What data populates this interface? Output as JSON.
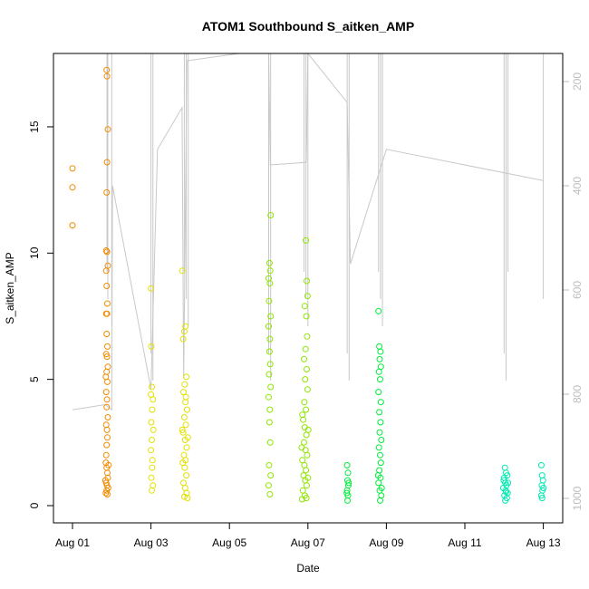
{
  "chart_data": {
    "type": "scatter",
    "title": "ATOM1 Southbound S_aitken_AMP",
    "xlabel": "Date",
    "ylabel": "S_aitken_AMP",
    "xlim": [
      "2021-08-01",
      "2021-08-13.25"
    ],
    "ylim": [
      0,
      17.8
    ],
    "x_ticks": [
      {
        "date": "2021-08-01",
        "label": "Aug 01"
      },
      {
        "date": "2021-08-03",
        "label": "Aug 03"
      },
      {
        "date": "2021-08-05",
        "label": "Aug 05"
      },
      {
        "date": "2021-08-07",
        "label": "Aug 07"
      },
      {
        "date": "2021-08-09",
        "label": "Aug 09"
      },
      {
        "date": "2021-08-11",
        "label": "Aug 11"
      },
      {
        "date": "2021-08-13",
        "label": "Aug 13"
      }
    ],
    "y_ticks": [
      0,
      5,
      10,
      15
    ],
    "y2_axis": {
      "ticks": [
        200,
        400,
        600,
        800,
        1000
      ],
      "reversed": true,
      "lim": [
        140,
        1050
      ],
      "line_color": "#c8c8c8",
      "series": [
        {
          "x": "2021-08-01 00:00",
          "y": 830
        },
        {
          "x": "2021-08-01 20:00",
          "y": 820
        },
        {
          "x": "2021-08-02 00:00",
          "y": 830
        },
        {
          "x": "2021-08-02 00:30",
          "y": 400
        },
        {
          "x": "2021-08-03 00:00",
          "y": 790
        },
        {
          "x": "2021-08-03 04:00",
          "y": 330
        },
        {
          "x": "2021-08-03 19:00",
          "y": 250
        },
        {
          "x": "2021-08-03 20:00",
          "y": 770
        },
        {
          "x": "2021-08-03 22:00",
          "y": 160
        },
        {
          "x": "2021-08-05 06:00",
          "y": 130
        },
        {
          "x": "2021-08-06 00:00",
          "y": 140
        },
        {
          "x": "2021-08-06 01:00",
          "y": 360
        },
        {
          "x": "2021-08-06 23:00",
          "y": 355
        },
        {
          "x": "2021-08-07 00:00",
          "y": 140
        },
        {
          "x": "2021-08-08 00:00",
          "y": 240
        },
        {
          "x": "2021-08-08 02:00",
          "y": 550
        },
        {
          "x": "2021-08-09 00:00",
          "y": 330
        },
        {
          "x": "2021-08-13 00:00",
          "y": 390
        }
      ]
    },
    "series": [
      {
        "name": "",
        "x_start": "2021-08-01",
        "color": "#f28b00",
        "points": [
          {
            "x": 0.0,
            "y": 13.35
          },
          {
            "x": 0.0,
            "y": 12.6
          },
          {
            "x": 0.0,
            "y": 11.1
          },
          {
            "x": 0.87,
            "y": 17.25
          },
          {
            "x": 0.88,
            "y": 17.0
          },
          {
            "x": 0.9,
            "y": 14.9
          },
          {
            "x": 0.88,
            "y": 13.6
          },
          {
            "x": 0.87,
            "y": 12.4
          },
          {
            "x": 0.86,
            "y": 10.1
          },
          {
            "x": 0.88,
            "y": 10.05
          },
          {
            "x": 0.9,
            "y": 9.5
          },
          {
            "x": 0.86,
            "y": 9.3
          },
          {
            "x": 0.87,
            "y": 8.7
          },
          {
            "x": 0.89,
            "y": 8.0
          },
          {
            "x": 0.86,
            "y": 7.6
          },
          {
            "x": 0.88,
            "y": 7.6
          },
          {
            "x": 0.87,
            "y": 6.8
          },
          {
            "x": 0.89,
            "y": 6.3
          },
          {
            "x": 0.86,
            "y": 6.0
          },
          {
            "x": 0.88,
            "y": 5.9
          },
          {
            "x": 0.9,
            "y": 5.5
          },
          {
            "x": 0.87,
            "y": 5.3
          },
          {
            "x": 0.85,
            "y": 5.1
          },
          {
            "x": 0.89,
            "y": 4.9
          },
          {
            "x": 0.86,
            "y": 4.5
          },
          {
            "x": 0.88,
            "y": 4.2
          },
          {
            "x": 0.87,
            "y": 3.9
          },
          {
            "x": 0.9,
            "y": 3.5
          },
          {
            "x": 0.86,
            "y": 3.2
          },
          {
            "x": 0.88,
            "y": 3.0
          },
          {
            "x": 0.89,
            "y": 2.7
          },
          {
            "x": 0.87,
            "y": 2.4
          },
          {
            "x": 0.86,
            "y": 2.0
          },
          {
            "x": 0.85,
            "y": 1.7
          },
          {
            "x": 0.87,
            "y": 1.5
          },
          {
            "x": 0.89,
            "y": 1.3
          },
          {
            "x": 0.9,
            "y": 1.1
          },
          {
            "x": 0.86,
            "y": 0.9
          },
          {
            "x": 0.88,
            "y": 0.8
          },
          {
            "x": 0.87,
            "y": 0.6
          },
          {
            "x": 0.85,
            "y": 0.5
          },
          {
            "x": 0.89,
            "y": 0.45
          },
          {
            "x": 0.91,
            "y": 0.7
          },
          {
            "x": 0.84,
            "y": 1.0
          },
          {
            "x": 0.92,
            "y": 1.6
          }
        ]
      },
      {
        "name": "",
        "x_start": "2021-08-01",
        "color": "#e3e100",
        "points": [
          {
            "x": 2.0,
            "y": 8.6
          },
          {
            "x": 2.01,
            "y": 6.3
          },
          {
            "x": 2.02,
            "y": 4.7
          },
          {
            "x": 2.0,
            "y": 4.4
          },
          {
            "x": 2.05,
            "y": 4.2
          },
          {
            "x": 2.03,
            "y": 3.8
          },
          {
            "x": 2.01,
            "y": 3.3
          },
          {
            "x": 2.06,
            "y": 3.0
          },
          {
            "x": 2.02,
            "y": 2.6
          },
          {
            "x": 2.0,
            "y": 2.2
          },
          {
            "x": 2.04,
            "y": 1.8
          },
          {
            "x": 2.03,
            "y": 1.5
          },
          {
            "x": 2.01,
            "y": 1.1
          },
          {
            "x": 2.05,
            "y": 0.8
          },
          {
            "x": 2.02,
            "y": 0.6
          },
          {
            "x": 2.8,
            "y": 9.3
          },
          {
            "x": 2.82,
            "y": 6.6
          },
          {
            "x": 2.85,
            "y": 6.9
          },
          {
            "x": 2.88,
            "y": 7.1
          },
          {
            "x": 2.9,
            "y": 5.1
          },
          {
            "x": 2.86,
            "y": 4.8
          },
          {
            "x": 2.83,
            "y": 4.5
          },
          {
            "x": 2.88,
            "y": 4.1
          },
          {
            "x": 2.92,
            "y": 3.8
          },
          {
            "x": 2.85,
            "y": 3.5
          },
          {
            "x": 2.89,
            "y": 3.2
          },
          {
            "x": 2.82,
            "y": 2.9
          },
          {
            "x": 2.87,
            "y": 2.6
          },
          {
            "x": 2.91,
            "y": 2.3
          },
          {
            "x": 2.84,
            "y": 2.0
          },
          {
            "x": 2.88,
            "y": 1.8
          },
          {
            "x": 2.86,
            "y": 1.5
          },
          {
            "x": 2.9,
            "y": 1.2
          },
          {
            "x": 2.83,
            "y": 0.9
          },
          {
            "x": 2.87,
            "y": 0.7
          },
          {
            "x": 2.91,
            "y": 0.5
          },
          {
            "x": 2.85,
            "y": 0.35
          },
          {
            "x": 2.93,
            "y": 0.3
          },
          {
            "x": 2.81,
            "y": 1.7
          },
          {
            "x": 2.94,
            "y": 2.7
          },
          {
            "x": 2.8,
            "y": 3.0
          },
          {
            "x": 2.89,
            "y": 4.3
          }
        ]
      },
      {
        "name": "",
        "x_start": "2021-08-01",
        "color": "#8ee600",
        "points": [
          {
            "x": 5.05,
            "y": 11.5
          },
          {
            "x": 5.02,
            "y": 9.6
          },
          {
            "x": 5.04,
            "y": 9.3
          },
          {
            "x": 5.0,
            "y": 9.0
          },
          {
            "x": 5.03,
            "y": 8.8
          },
          {
            "x": 5.01,
            "y": 8.1
          },
          {
            "x": 5.05,
            "y": 7.5
          },
          {
            "x": 5.0,
            "y": 7.1
          },
          {
            "x": 5.03,
            "y": 6.6
          },
          {
            "x": 5.02,
            "y": 6.1
          },
          {
            "x": 5.04,
            "y": 5.6
          },
          {
            "x": 5.01,
            "y": 5.2
          },
          {
            "x": 5.05,
            "y": 4.7
          },
          {
            "x": 5.0,
            "y": 4.3
          },
          {
            "x": 5.03,
            "y": 3.8
          },
          {
            "x": 5.02,
            "y": 3.3
          },
          {
            "x": 5.04,
            "y": 2.5
          },
          {
            "x": 5.01,
            "y": 1.6
          },
          {
            "x": 5.05,
            "y": 1.2
          },
          {
            "x": 5.0,
            "y": 0.8
          },
          {
            "x": 5.03,
            "y": 0.45
          },
          {
            "x": 5.95,
            "y": 10.5
          },
          {
            "x": 5.97,
            "y": 8.9
          },
          {
            "x": 5.99,
            "y": 8.3
          },
          {
            "x": 5.92,
            "y": 7.9
          },
          {
            "x": 5.96,
            "y": 7.5
          },
          {
            "x": 5.98,
            "y": 6.7
          },
          {
            "x": 5.94,
            "y": 6.2
          },
          {
            "x": 5.9,
            "y": 5.8
          },
          {
            "x": 5.97,
            "y": 5.4
          },
          {
            "x": 5.93,
            "y": 5.0
          },
          {
            "x": 5.99,
            "y": 4.6
          },
          {
            "x": 5.91,
            "y": 4.1
          },
          {
            "x": 5.95,
            "y": 3.8
          },
          {
            "x": 5.88,
            "y": 3.4
          },
          {
            "x": 5.92,
            "y": 3.1
          },
          {
            "x": 5.96,
            "y": 2.8
          },
          {
            "x": 5.9,
            "y": 2.5
          },
          {
            "x": 5.94,
            "y": 2.2
          },
          {
            "x": 5.98,
            "y": 2.0
          },
          {
            "x": 5.86,
            "y": 1.8
          },
          {
            "x": 5.91,
            "y": 1.6
          },
          {
            "x": 5.95,
            "y": 1.4
          },
          {
            "x": 5.89,
            "y": 1.2
          },
          {
            "x": 5.93,
            "y": 1.0
          },
          {
            "x": 5.97,
            "y": 0.8
          },
          {
            "x": 5.87,
            "y": 0.6
          },
          {
            "x": 5.92,
            "y": 0.4
          },
          {
            "x": 5.96,
            "y": 0.3
          },
          {
            "x": 5.85,
            "y": 0.25
          },
          {
            "x": 6.0,
            "y": 1.1
          },
          {
            "x": 5.84,
            "y": 2.3
          },
          {
            "x": 6.01,
            "y": 3.0
          },
          {
            "x": 5.86,
            "y": 3.6
          }
        ]
      },
      {
        "name": "",
        "x_start": "2021-08-01",
        "color": "#00ee3c",
        "points": [
          {
            "x": 7.0,
            "y": 1.6
          },
          {
            "x": 7.02,
            "y": 1.3
          },
          {
            "x": 7.01,
            "y": 1.0
          },
          {
            "x": 7.03,
            "y": 0.8
          },
          {
            "x": 7.0,
            "y": 0.6
          },
          {
            "x": 7.02,
            "y": 0.4
          },
          {
            "x": 7.01,
            "y": 0.2
          },
          {
            "x": 7.04,
            "y": 0.9
          },
          {
            "x": 6.99,
            "y": 0.5
          },
          {
            "x": 7.8,
            "y": 7.7
          },
          {
            "x": 7.82,
            "y": 6.3
          },
          {
            "x": 7.85,
            "y": 6.1
          },
          {
            "x": 7.83,
            "y": 5.8
          },
          {
            "x": 7.86,
            "y": 5.5
          },
          {
            "x": 7.81,
            "y": 5.3
          },
          {
            "x": 7.84,
            "y": 5.0
          },
          {
            "x": 7.8,
            "y": 4.5
          },
          {
            "x": 7.86,
            "y": 4.1
          },
          {
            "x": 7.82,
            "y": 3.7
          },
          {
            "x": 7.85,
            "y": 3.3
          },
          {
            "x": 7.83,
            "y": 2.9
          },
          {
            "x": 7.87,
            "y": 2.6
          },
          {
            "x": 7.81,
            "y": 2.3
          },
          {
            "x": 7.84,
            "y": 2.0
          },
          {
            "x": 7.86,
            "y": 1.7
          },
          {
            "x": 7.82,
            "y": 1.4
          },
          {
            "x": 7.85,
            "y": 1.1
          },
          {
            "x": 7.8,
            "y": 0.9
          },
          {
            "x": 7.83,
            "y": 0.6
          },
          {
            "x": 7.87,
            "y": 0.4
          },
          {
            "x": 7.84,
            "y": 0.2
          },
          {
            "x": 7.88,
            "y": 0.7
          },
          {
            "x": 7.79,
            "y": 1.2
          }
        ]
      },
      {
        "name": "",
        "x_start": "2021-08-01",
        "color": "#00eab0",
        "points": [
          {
            "x": 11.02,
            "y": 1.5
          },
          {
            "x": 11.05,
            "y": 1.3
          },
          {
            "x": 11.0,
            "y": 1.1
          },
          {
            "x": 11.08,
            "y": 1.2
          },
          {
            "x": 11.03,
            "y": 0.9
          },
          {
            "x": 11.06,
            "y": 0.8
          },
          {
            "x": 10.98,
            "y": 0.7
          },
          {
            "x": 11.04,
            "y": 0.6
          },
          {
            "x": 11.09,
            "y": 0.5
          },
          {
            "x": 11.01,
            "y": 0.4
          },
          {
            "x": 11.07,
            "y": 0.3
          },
          {
            "x": 11.03,
            "y": 0.2
          },
          {
            "x": 10.99,
            "y": 1.0
          },
          {
            "x": 11.1,
            "y": 0.9
          },
          {
            "x": 11.05,
            "y": 0.55
          },
          {
            "x": 11.95,
            "y": 1.6
          },
          {
            "x": 11.97,
            "y": 1.2
          },
          {
            "x": 11.99,
            "y": 1.0
          },
          {
            "x": 11.96,
            "y": 0.8
          },
          {
            "x": 11.98,
            "y": 0.6
          },
          {
            "x": 11.95,
            "y": 0.4
          },
          {
            "x": 11.97,
            "y": 0.3
          },
          {
            "x": 12.0,
            "y": 0.7
          }
        ]
      }
    ]
  }
}
